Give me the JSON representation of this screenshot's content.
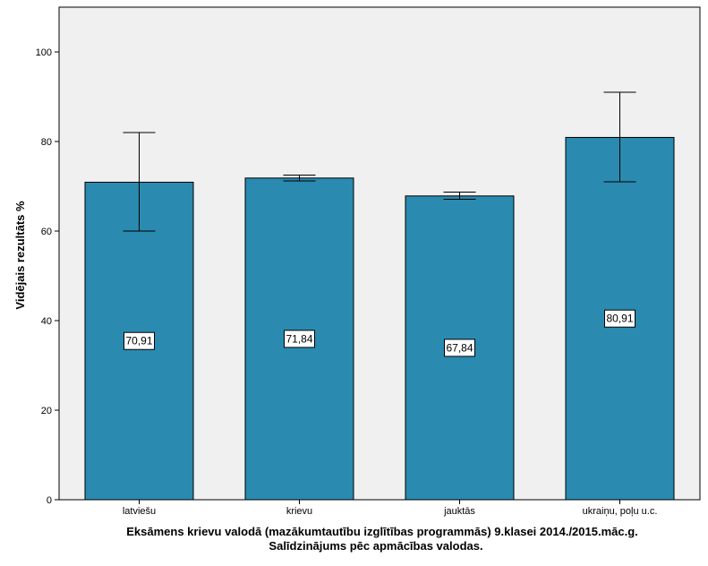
{
  "chart_data": {
    "type": "bar",
    "categories": [
      "latviešu",
      "krievu",
      "jauktās",
      "ukraiņu, poļu u.c."
    ],
    "values": [
      70.91,
      71.84,
      67.84,
      80.91
    ],
    "data_labels": [
      "70,91",
      "71,84",
      "67,84",
      "80,91"
    ],
    "error_bars": [
      {
        "low": 60,
        "high": 82
      },
      {
        "low": 71.2,
        "high": 72.5
      },
      {
        "low": 67.1,
        "high": 68.7
      },
      {
        "low": 71,
        "high": 91
      }
    ],
    "ylabel": "Vidējais rezultāts %",
    "xlabel_line1": "Eksāmens krievu valodā (mazākumtautību izglītības programmās) 9.klasei 2014./2015.māc.g.",
    "xlabel_line2": "Salīdzinājums pēc apmācības valodas.",
    "ylim": [
      0,
      110
    ],
    "yticks": [
      0,
      20,
      40,
      60,
      80,
      100
    ],
    "grid": false,
    "colors": {
      "bar": "#2a8ab0",
      "plot_background": "#f0f0f0",
      "axis": "#000000"
    }
  }
}
